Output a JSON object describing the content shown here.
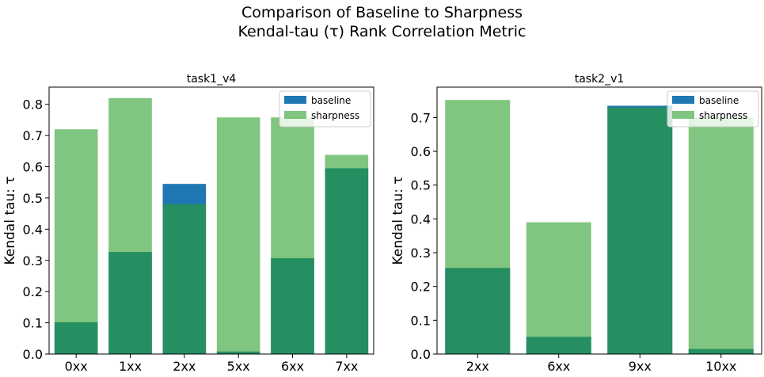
{
  "figure": {
    "title_line1": "Comparison of Baseline to Sharpness",
    "title_line2": "Kendal-tau (τ) Rank Correlation Metric"
  },
  "colors": {
    "baseline": "#1f77b4",
    "sharpness": "#2ca02c",
    "sharpness_alpha": 0.6,
    "overlap_blend": "#117b5a"
  },
  "chart_data": [
    {
      "type": "bar",
      "title": "task1_v4",
      "ylabel": "Kendal tau: τ",
      "xlabel": "",
      "categories": [
        "0xx",
        "1xx",
        "2xx",
        "5xx",
        "6xx",
        "7xx"
      ],
      "series": [
        {
          "name": "baseline",
          "values": [
            0.102,
            0.327,
            0.545,
            0.008,
            0.307,
            0.595
          ]
        },
        {
          "name": "sharpness",
          "values": [
            0.72,
            0.82,
            0.48,
            0.758,
            0.758,
            0.638
          ]
        }
      ],
      "ylim": [
        0,
        0.855
      ],
      "yticks": [
        0.0,
        0.1,
        0.2,
        0.3,
        0.4,
        0.5,
        0.6,
        0.7,
        0.8
      ],
      "ytick_labels": [
        "0.0",
        "0.1",
        "0.2",
        "0.3",
        "0.4",
        "0.5",
        "0.6",
        "0.7",
        "0.8"
      ],
      "legend": "top-right",
      "grid": false
    },
    {
      "type": "bar",
      "title": "task2_v1",
      "ylabel": "Kendal tau: τ",
      "xlabel": "",
      "categories": [
        "2xx",
        "6xx",
        "9xx",
        "10xx"
      ],
      "series": [
        {
          "name": "baseline",
          "values": [
            0.255,
            0.051,
            0.735,
            0.015
          ]
        },
        {
          "name": "sharpness",
          "values": [
            0.752,
            0.39,
            0.73,
            0.7
          ]
        }
      ],
      "ylim": [
        0,
        0.79
      ],
      "yticks": [
        0.0,
        0.1,
        0.2,
        0.3,
        0.4,
        0.5,
        0.6,
        0.7
      ],
      "ytick_labels": [
        "0.0",
        "0.1",
        "0.2",
        "0.3",
        "0.4",
        "0.5",
        "0.6",
        "0.7"
      ],
      "legend": "top-right",
      "grid": false
    }
  ]
}
